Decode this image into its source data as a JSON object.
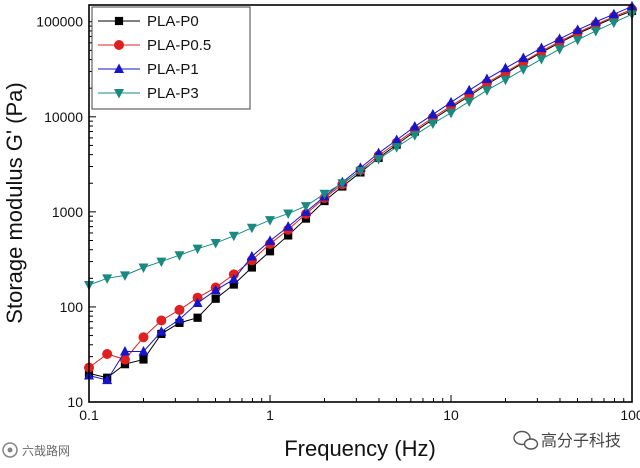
{
  "chart_data": {
    "type": "line",
    "xlabel": "Frequency (Hz)",
    "ylabel": "Storage modulus G' (Pa)",
    "xscale": "log",
    "yscale": "log",
    "xlim": [
      0.1,
      100
    ],
    "ylim": [
      10,
      150000
    ],
    "x_ticks": [
      "0.1",
      "1",
      "10",
      "100"
    ],
    "y_ticks": [
      "10",
      "100",
      "1000",
      "10000",
      "100000"
    ],
    "grid": false,
    "legend_position": "top-left",
    "x": [
      0.1,
      0.126,
      0.158,
      0.2,
      0.251,
      0.316,
      0.398,
      0.501,
      0.631,
      0.794,
      1.0,
      1.26,
      1.58,
      2.0,
      2.51,
      3.16,
      3.98,
      5.01,
      6.31,
      7.94,
      10.0,
      12.6,
      15.8,
      20.0,
      25.1,
      31.6,
      39.8,
      50.1,
      63.1,
      79.4,
      100
    ],
    "series": [
      {
        "name": "PLA-P0",
        "marker": "square",
        "color": "#000000",
        "values": [
          20,
          18,
          25,
          28,
          52,
          68,
          77,
          122,
          172,
          260,
          385,
          565,
          850,
          1300,
          1850,
          2600,
          3700,
          5100,
          7000,
          9400,
          12500,
          16500,
          22000,
          28500,
          37000,
          47500,
          60000,
          75000,
          91000,
          110000,
          130000
        ]
      },
      {
        "name": "PLA-P0.5",
        "marker": "circle",
        "color": "#e02020",
        "values": [
          23,
          32,
          28,
          48,
          72,
          93,
          125,
          160,
          220,
          310,
          460,
          650,
          950,
          1400,
          1950,
          2750,
          3900,
          5350,
          7300,
          9800,
          13000,
          17200,
          22800,
          29500,
          38000,
          49000,
          62000,
          77000,
          94000,
          113000,
          135000
        ]
      },
      {
        "name": "PLA-P1",
        "marker": "triangle-up",
        "color": "#1515cc",
        "values": [
          19,
          17,
          34,
          34,
          55,
          74,
          110,
          150,
          195,
          340,
          495,
          700,
          1000,
          1450,
          2050,
          2900,
          4150,
          5700,
          7900,
          10600,
          14200,
          19000,
          25000,
          32500,
          41500,
          53000,
          66000,
          82000,
          100000,
          120000,
          145000
        ]
      },
      {
        "name": "PLA-P3",
        "marker": "triangle-down",
        "color": "#1a8a80",
        "values": [
          170,
          200,
          215,
          260,
          300,
          350,
          410,
          470,
          560,
          680,
          820,
          960,
          1150,
          1550,
          2000,
          2700,
          3600,
          4800,
          6400,
          8500,
          11000,
          14500,
          19000,
          24500,
          31500,
          40500,
          51500,
          64500,
          80000,
          98000,
          120000
        ]
      }
    ]
  },
  "watermarks": {
    "left": "六哉路网",
    "right": "高分子科技",
    "left_icon": "camera-logo-icon",
    "right_icon": "wechat-icon"
  }
}
